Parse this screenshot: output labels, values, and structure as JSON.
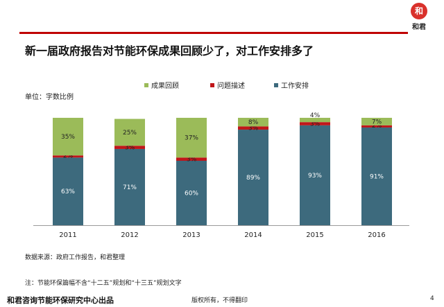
{
  "header": {
    "logo_glyph": "和",
    "logo_text": "和君"
  },
  "title": "新一届政府报告对节能环保成果回顾少了，对工作安排多了",
  "chart_data": {
    "type": "bar",
    "stacked": true,
    "unit_label": "单位：字数比例",
    "categories": [
      "2011",
      "2012",
      "2013",
      "2014",
      "2015",
      "2016"
    ],
    "series": [
      {
        "name": "工作安排",
        "color": "#3d6a7d",
        "values": [
          63,
          71,
          60,
          89,
          93,
          91
        ],
        "labels": [
          "63%",
          "71%",
          "60%",
          "89%",
          "93%",
          "91%"
        ]
      },
      {
        "name": "问题描述",
        "color": "#c0161a",
        "values": [
          2,
          3,
          3,
          3,
          3,
          2
        ],
        "labels": [
          "2%",
          "3%",
          "3%",
          "3%",
          "3%",
          "2%"
        ]
      },
      {
        "name": "成果回顾",
        "color": "#9bbb59",
        "values": [
          35,
          25,
          37,
          8,
          4,
          7
        ],
        "labels": [
          "35%",
          "25%",
          "37%",
          "8%",
          "4%",
          "7%"
        ]
      }
    ],
    "legend_order": [
      "成果回顾",
      "问题描述",
      "工作安排"
    ],
    "legend_position": "top",
    "ylim": [
      0,
      100
    ],
    "grid": false
  },
  "source": "数据来源：政府工作报告，和君整理",
  "note": "注：节能环保篇幅不含“十二五”规划和“十三五”规划文字",
  "footer": {
    "org": "和君咨询节能环保研究中心出品",
    "rights": "版权所有，不得翻印",
    "page": "4"
  }
}
